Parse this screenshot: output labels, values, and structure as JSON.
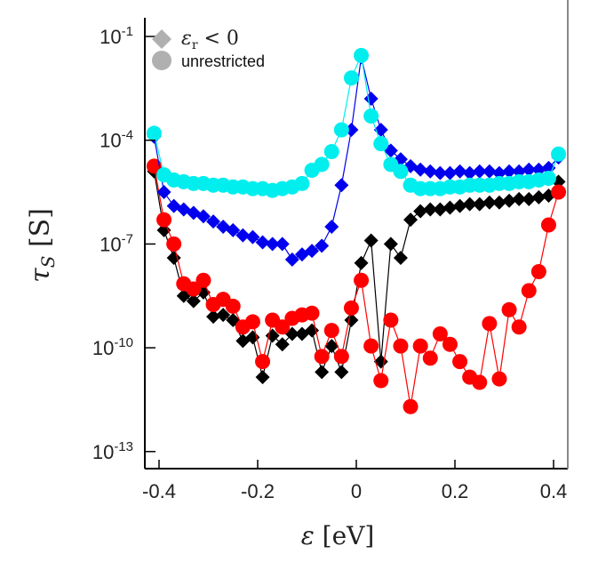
{
  "chart_data": {
    "type": "scatter",
    "title": "",
    "xlabel": "ε [eV]",
    "xlabel_symbol": "ε",
    "xlabel_unit": "[eV]",
    "ylabel": "τS [S]",
    "ylabel_symbol": "τ",
    "ylabel_sub": "S",
    "ylabel_unit": "[S]",
    "yscale": "log",
    "xlim": [
      -0.43,
      0.43
    ],
    "ylim_log10": [
      -13.5,
      -0.6
    ],
    "x_ticks": [
      {
        "value": -0.4,
        "label": "-0.4"
      },
      {
        "value": -0.2,
        "label": "-0.2"
      },
      {
        "value": 0,
        "label": "0"
      },
      {
        "value": 0.2,
        "label": "0.2"
      },
      {
        "value": 0.4,
        "label": "0.4"
      }
    ],
    "y_ticks": [
      {
        "exp": -1,
        "base": "10",
        "sup": "-1"
      },
      {
        "exp": -4,
        "base": "10",
        "sup": "-4"
      },
      {
        "exp": -7,
        "base": "10",
        "sup": "-7"
      },
      {
        "exp": -10,
        "base": "10",
        "sup": "-10"
      },
      {
        "exp": -13,
        "base": "10",
        "sup": "-13"
      }
    ],
    "legend": {
      "placement": "top-left",
      "entries": [
        {
          "marker": "diamond",
          "label": "εr < 0",
          "symbol": "ε",
          "sub": "r",
          "rest": " < 0",
          "color": "#b0b0b0"
        },
        {
          "marker": "circle",
          "label": "unrestricted",
          "color": "#b0b0b0"
        }
      ]
    },
    "x": [
      -0.41,
      -0.39,
      -0.37,
      -0.35,
      -0.33,
      -0.31,
      -0.29,
      -0.27,
      -0.25,
      -0.23,
      -0.21,
      -0.19,
      -0.17,
      -0.15,
      -0.13,
      -0.11,
      -0.09,
      -0.07,
      -0.05,
      -0.03,
      -0.01,
      0.01,
      0.03,
      0.05,
      0.07,
      0.09,
      0.11,
      0.13,
      0.15,
      0.17,
      0.19,
      0.21,
      0.23,
      0.25,
      0.27,
      0.29,
      0.31,
      0.33,
      0.35,
      0.37,
      0.39,
      0.41
    ],
    "series": [
      {
        "name": "black diamonds (εr < 0)",
        "marker": "diamond",
        "color": "#000000",
        "values_log10": [
          -4.9,
          -6.6,
          -7.4,
          -8.5,
          -8.65,
          -8.4,
          -9.1,
          -9.05,
          -9.2,
          -9.8,
          -9.7,
          -10.85,
          -9.65,
          -9.9,
          -9.6,
          -9.6,
          -9.5,
          -10.7,
          -9.95,
          -10.7,
          -9.2,
          -7.55,
          -6.9,
          -10.4,
          -7.0,
          -7.4,
          -6.3,
          -6.05,
          -6.0,
          -6.0,
          -5.95,
          -5.9,
          -5.85,
          -5.85,
          -5.8,
          -5.8,
          -5.75,
          -5.7,
          -5.7,
          -5.65,
          -5.6,
          -5.2
        ]
      },
      {
        "name": "red circles (unrestricted)",
        "marker": "circle",
        "color": "#ff0000",
        "values_log10": [
          -4.75,
          -6.3,
          -7.0,
          -8.15,
          -8.3,
          -8.05,
          -8.75,
          -8.6,
          -8.8,
          -9.4,
          -9.25,
          -10.4,
          -9.2,
          -9.4,
          -9.15,
          -9.05,
          -9.0,
          -10.25,
          -9.5,
          -10.25,
          -8.85,
          -8.05,
          -9.95,
          -10.95,
          -9.2,
          -9.95,
          -11.7,
          -9.95,
          -10.3,
          -9.6,
          -9.9,
          -10.4,
          -10.85,
          -11.0,
          -9.3,
          -10.9,
          -8.9,
          -9.4,
          -8.35,
          -7.8,
          -6.45,
          -5.5
        ]
      },
      {
        "name": "blue diamonds (εr < 0)",
        "marker": "diamond",
        "color": "#0000ee",
        "values_log10": [
          -3.9,
          -5.5,
          -5.9,
          -6.0,
          -6.1,
          -6.2,
          -6.35,
          -6.5,
          -6.6,
          -6.75,
          -6.8,
          -6.95,
          -7.0,
          -7.0,
          -7.45,
          -7.3,
          -7.2,
          -7.05,
          -6.5,
          -5.3,
          -3.7,
          -1.6,
          -2.8,
          -3.7,
          -4.3,
          -4.55,
          -4.75,
          -4.85,
          -4.9,
          -4.95,
          -4.95,
          -4.9,
          -4.95,
          -4.9,
          -4.9,
          -4.95,
          -4.9,
          -4.9,
          -4.85,
          -4.85,
          -4.8,
          -4.5
        ]
      },
      {
        "name": "cyan circles (unrestricted)",
        "marker": "circle",
        "color": "#00eeee",
        "values_log10": [
          -3.8,
          -5.0,
          -5.15,
          -5.2,
          -5.25,
          -5.25,
          -5.3,
          -5.3,
          -5.35,
          -5.35,
          -5.4,
          -5.4,
          -5.45,
          -5.4,
          -5.35,
          -5.25,
          -4.87,
          -4.7,
          -4.33,
          -3.7,
          -2.2,
          -1.55,
          -3.3,
          -4.1,
          -4.7,
          -4.9,
          -5.3,
          -5.4,
          -5.4,
          -5.4,
          -5.35,
          -5.35,
          -5.3,
          -5.3,
          -5.3,
          -5.25,
          -5.25,
          -5.2,
          -5.2,
          -5.15,
          -5.1,
          -4.4
        ]
      }
    ]
  }
}
